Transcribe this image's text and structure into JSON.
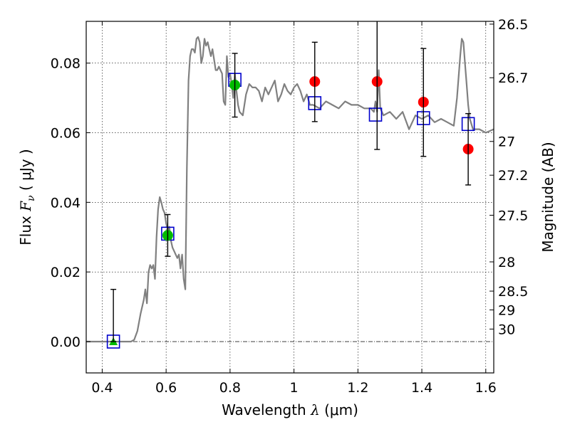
{
  "chart_data": {
    "type": "scatter",
    "xlabel": "Wavelength",
    "xlabel_symbol": "λ",
    "xlabel_unit": "(μm)",
    "ylabel": "Flux",
    "ylabel_symbol": "F",
    "ylabel_subscript": "ν",
    "ylabel_unit": "( μJy )",
    "y2label": "Magnitude (AB)",
    "xlim": [
      0.35,
      1.625
    ],
    "ylim": [
      -0.009,
      0.092
    ],
    "grid": true,
    "x_ticks": [
      0.4,
      0.6,
      0.8,
      1.0,
      1.2,
      1.4,
      1.6
    ],
    "x_tick_labels": [
      "0.4",
      "0.6",
      "0.8",
      "1",
      "1.2",
      "1.4",
      "1.6"
    ],
    "y_ticks": [
      0.0,
      0.02,
      0.04,
      0.06,
      0.08
    ],
    "y_tick_labels": [
      "0.00",
      "0.02",
      "0.04",
      "0.06",
      "0.08"
    ],
    "y2_ticks": [
      {
        "label": "26.5",
        "flux": 0.0912
      },
      {
        "label": "26.7",
        "flux": 0.0758
      },
      {
        "label": "27",
        "flux": 0.0575
      },
      {
        "label": "27.2",
        "flux": 0.0478
      },
      {
        "label": "27.5",
        "flux": 0.0363
      },
      {
        "label": "28",
        "flux": 0.0229
      },
      {
        "label": "28.5",
        "flux": 0.0145
      },
      {
        "label": "29",
        "flux": 0.0091
      },
      {
        "label": "30",
        "flux": 0.0036
      }
    ],
    "colors": {
      "sed": "#808080",
      "model_box": "#0000cc",
      "detection": "#ff0000",
      "detection_green": "#00bb00",
      "error_bar": "#000000",
      "zero_line": "#000000"
    },
    "sed": {
      "x": [
        0.35,
        0.49,
        0.5,
        0.51,
        0.52,
        0.53,
        0.535,
        0.54,
        0.545,
        0.55,
        0.555,
        0.56,
        0.565,
        0.57,
        0.575,
        0.58,
        0.585,
        0.59,
        0.595,
        0.6,
        0.605,
        0.61,
        0.615,
        0.62,
        0.625,
        0.63,
        0.635,
        0.64,
        0.645,
        0.65,
        0.655,
        0.66,
        0.665,
        0.67,
        0.675,
        0.68,
        0.685,
        0.69,
        0.695,
        0.7,
        0.705,
        0.71,
        0.715,
        0.72,
        0.725,
        0.73,
        0.735,
        0.74,
        0.745,
        0.75,
        0.755,
        0.76,
        0.765,
        0.77,
        0.775,
        0.78,
        0.785,
        0.79,
        0.795,
        0.8,
        0.805,
        0.81,
        0.815,
        0.82,
        0.825,
        0.83,
        0.84,
        0.85,
        0.86,
        0.87,
        0.88,
        0.89,
        0.9,
        0.91,
        0.92,
        0.93,
        0.94,
        0.95,
        0.96,
        0.97,
        0.98,
        0.99,
        1.0,
        1.01,
        1.02,
        1.03,
        1.04,
        1.05,
        1.06,
        1.08,
        1.1,
        1.12,
        1.14,
        1.16,
        1.18,
        1.2,
        1.22,
        1.24,
        1.25,
        1.255,
        1.26,
        1.265,
        1.27,
        1.275,
        1.28,
        1.3,
        1.32,
        1.34,
        1.36,
        1.38,
        1.4,
        1.42,
        1.44,
        1.46,
        1.48,
        1.5,
        1.51,
        1.52,
        1.525,
        1.53,
        1.535,
        1.54,
        1.545,
        1.55,
        1.56,
        1.58,
        1.6,
        1.625
      ],
      "y": [
        0.0,
        0.0,
        0.0005,
        0.003,
        0.008,
        0.012,
        0.015,
        0.011,
        0.02,
        0.022,
        0.021,
        0.022,
        0.018,
        0.03,
        0.038,
        0.0415,
        0.04,
        0.038,
        0.037,
        0.034,
        0.032,
        0.033,
        0.029,
        0.027,
        0.026,
        0.025,
        0.024,
        0.025,
        0.021,
        0.025,
        0.018,
        0.015,
        0.05,
        0.075,
        0.082,
        0.084,
        0.084,
        0.083,
        0.087,
        0.0875,
        0.086,
        0.08,
        0.082,
        0.087,
        0.085,
        0.086,
        0.084,
        0.082,
        0.084,
        0.081,
        0.078,
        0.078,
        0.079,
        0.078,
        0.077,
        0.069,
        0.068,
        0.082,
        0.076,
        0.077,
        0.074,
        0.07,
        0.077,
        0.072,
        0.068,
        0.066,
        0.065,
        0.071,
        0.074,
        0.073,
        0.073,
        0.072,
        0.069,
        0.073,
        0.071,
        0.073,
        0.075,
        0.069,
        0.071,
        0.074,
        0.072,
        0.071,
        0.073,
        0.074,
        0.072,
        0.069,
        0.071,
        0.068,
        0.068,
        0.067,
        0.069,
        0.068,
        0.067,
        0.069,
        0.068,
        0.068,
        0.067,
        0.067,
        0.066,
        0.069,
        0.066,
        0.078,
        0.067,
        0.066,
        0.065,
        0.066,
        0.064,
        0.066,
        0.061,
        0.065,
        0.064,
        0.065,
        0.063,
        0.064,
        0.063,
        0.062,
        0.07,
        0.082,
        0.087,
        0.086,
        0.08,
        0.074,
        0.068,
        0.064,
        0.061,
        0.061,
        0.06,
        0.061
      ]
    },
    "model_boxes": {
      "x": [
        0.435,
        0.605,
        0.815,
        1.065,
        1.255,
        1.405,
        1.545
      ],
      "y": [
        0.0,
        0.031,
        0.0752,
        0.0685,
        0.0652,
        0.0642,
        0.0625
      ]
    },
    "detections": [
      {
        "x": 0.435,
        "y": 0.0,
        "yerr_low": 0.0,
        "yerr_high": 0.015,
        "marker": "triangle",
        "color": "green"
      },
      {
        "x": 0.605,
        "y": 0.0305,
        "yerr_low": 0.0245,
        "yerr_high": 0.0365,
        "marker": "circle",
        "color": "green"
      },
      {
        "x": 0.815,
        "y": 0.0737,
        "yerr_low": 0.0645,
        "yerr_high": 0.0828,
        "marker": "circle",
        "color": "green"
      },
      {
        "x": 1.065,
        "y": 0.0747,
        "yerr_low": 0.0632,
        "yerr_high": 0.086,
        "marker": "circle",
        "color": "red"
      },
      {
        "x": 1.26,
        "y": 0.0747,
        "yerr_low": 0.0552,
        "yerr_high": 0.095,
        "marker": "circle",
        "color": "red"
      },
      {
        "x": 1.405,
        "y": 0.0688,
        "yerr_low": 0.0532,
        "yerr_high": 0.0842,
        "marker": "circle",
        "color": "red"
      },
      {
        "x": 1.545,
        "y": 0.0553,
        "yerr_low": 0.045,
        "yerr_high": 0.0655,
        "marker": "circle",
        "color": "red"
      }
    ]
  }
}
